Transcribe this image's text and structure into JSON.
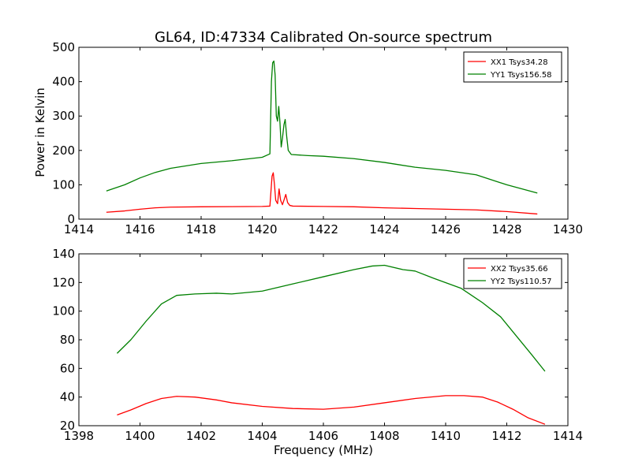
{
  "page": {
    "title": "GL64, ID:47334 Calibrated On-source spectrum"
  },
  "chart_data": [
    {
      "type": "line",
      "ylabel": "Power in Kelvin",
      "xlabel": "",
      "xlim": [
        1414,
        1430
      ],
      "ylim": [
        0,
        500
      ],
      "xticks": [
        "1414",
        "1416",
        "1418",
        "1420",
        "1422",
        "1424",
        "1426",
        "1428",
        "1430"
      ],
      "yticks": [
        "0",
        "100",
        "200",
        "300",
        "400",
        "500"
      ],
      "grid": false,
      "legend_position": "top-right",
      "series": [
        {
          "name": "XX1 Tsys34.28",
          "color": "#ff0000",
          "points": [
            [
              1414.9,
              20
            ],
            [
              1415.5,
              24
            ],
            [
              1416.0,
              29
            ],
            [
              1416.5,
              33
            ],
            [
              1417.0,
              35
            ],
            [
              1418.0,
              36
            ],
            [
              1419.0,
              36.5
            ],
            [
              1420.0,
              37
            ],
            [
              1420.25,
              38
            ],
            [
              1420.32,
              125
            ],
            [
              1420.36,
              135
            ],
            [
              1420.4,
              100
            ],
            [
              1420.44,
              55
            ],
            [
              1420.5,
              45
            ],
            [
              1420.55,
              88
            ],
            [
              1420.6,
              55
            ],
            [
              1420.66,
              42
            ],
            [
              1420.72,
              58
            ],
            [
              1420.77,
              72
            ],
            [
              1420.83,
              48
            ],
            [
              1420.9,
              40
            ],
            [
              1421.0,
              38
            ],
            [
              1422.0,
              37
            ],
            [
              1423.0,
              36
            ],
            [
              1424.0,
              33
            ],
            [
              1425.0,
              31
            ],
            [
              1426.0,
              29
            ],
            [
              1427.0,
              27
            ],
            [
              1428.0,
              22
            ],
            [
              1429.0,
              15
            ]
          ]
        },
        {
          "name": "YY1 Tsys156.58",
          "color": "#008000",
          "points": [
            [
              1414.9,
              82
            ],
            [
              1415.5,
              100
            ],
            [
              1416.0,
              120
            ],
            [
              1416.5,
              136
            ],
            [
              1417.0,
              148
            ],
            [
              1418.0,
              162
            ],
            [
              1419.0,
              170
            ],
            [
              1420.0,
              180
            ],
            [
              1420.25,
              190
            ],
            [
              1420.3,
              400
            ],
            [
              1420.34,
              455
            ],
            [
              1420.38,
              460
            ],
            [
              1420.42,
              420
            ],
            [
              1420.46,
              300
            ],
            [
              1420.5,
              285
            ],
            [
              1420.54,
              328
            ],
            [
              1420.58,
              280
            ],
            [
              1420.62,
              210
            ],
            [
              1420.66,
              235
            ],
            [
              1420.71,
              275
            ],
            [
              1420.75,
              290
            ],
            [
              1420.8,
              240
            ],
            [
              1420.85,
              200
            ],
            [
              1420.95,
              188
            ],
            [
              1421.5,
              185
            ],
            [
              1422.0,
              183
            ],
            [
              1423.0,
              176
            ],
            [
              1424.0,
              165
            ],
            [
              1425.0,
              151
            ],
            [
              1426.0,
              142
            ],
            [
              1427.0,
              129
            ],
            [
              1428.0,
              100
            ],
            [
              1429.0,
              76
            ]
          ]
        }
      ]
    },
    {
      "type": "line",
      "ylabel": "",
      "xlabel": "Frequency (MHz)",
      "xlim": [
        1398,
        1414
      ],
      "ylim": [
        20,
        140
      ],
      "xticks": [
        "1398",
        "1400",
        "1402",
        "1404",
        "1406",
        "1408",
        "1410",
        "1412",
        "1414"
      ],
      "yticks": [
        "20",
        "40",
        "60",
        "80",
        "100",
        "120",
        "140"
      ],
      "grid": false,
      "legend_position": "top-right",
      "series": [
        {
          "name": "XX2 Tsys35.66",
          "color": "#ff0000",
          "points": [
            [
              1399.25,
              27.5
            ],
            [
              1399.7,
              31
            ],
            [
              1400.2,
              35.5
            ],
            [
              1400.7,
              39
            ],
            [
              1401.2,
              40.5
            ],
            [
              1401.8,
              40
            ],
            [
              1402.5,
              38
            ],
            [
              1403.0,
              36
            ],
            [
              1404.0,
              33.5
            ],
            [
              1405.0,
              32
            ],
            [
              1406.0,
              31.5
            ],
            [
              1407.0,
              33
            ],
            [
              1408.0,
              36
            ],
            [
              1409.0,
              39
            ],
            [
              1410.0,
              41
            ],
            [
              1410.6,
              41
            ],
            [
              1411.2,
              40
            ],
            [
              1411.7,
              36.5
            ],
            [
              1412.2,
              31.5
            ],
            [
              1412.7,
              25.5
            ],
            [
              1413.25,
              21
            ]
          ]
        },
        {
          "name": "YY2 Tsys110.57",
          "color": "#008000",
          "points": [
            [
              1399.25,
              70.5
            ],
            [
              1399.7,
              80
            ],
            [
              1400.2,
              93
            ],
            [
              1400.7,
              105
            ],
            [
              1401.2,
              111
            ],
            [
              1401.8,
              112
            ],
            [
              1402.5,
              112.5
            ],
            [
              1403.0,
              112
            ],
            [
              1404.0,
              114
            ],
            [
              1405.0,
              119
            ],
            [
              1406.0,
              124
            ],
            [
              1407.0,
              129
            ],
            [
              1407.6,
              131.5
            ],
            [
              1408.0,
              132
            ],
            [
              1408.6,
              129
            ],
            [
              1409.0,
              128
            ],
            [
              1409.6,
              123
            ],
            [
              1410.5,
              116
            ],
            [
              1411.2,
              106
            ],
            [
              1411.8,
              96
            ],
            [
              1412.3,
              83
            ],
            [
              1412.8,
              70
            ],
            [
              1413.25,
              58
            ]
          ]
        }
      ]
    }
  ]
}
